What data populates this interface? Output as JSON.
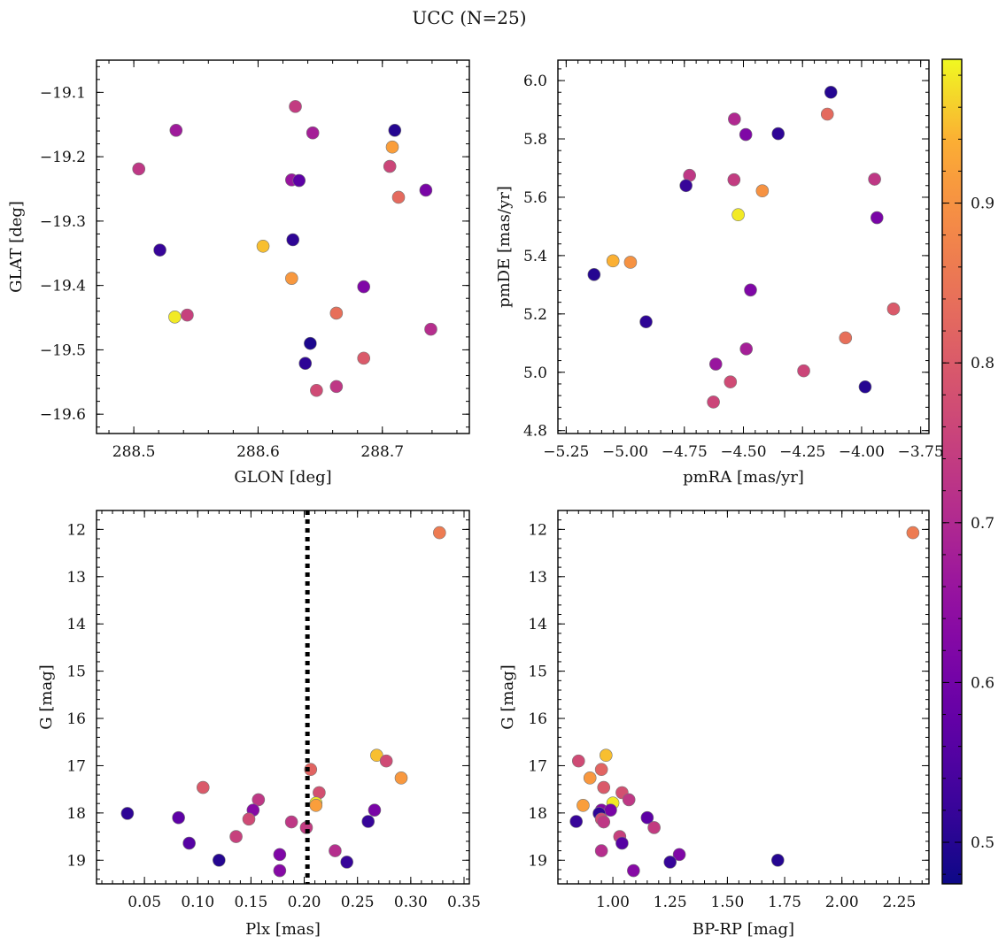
{
  "figure": {
    "title": "UCC (N=25)",
    "colorbar": {
      "range": [
        0.474,
        0.99
      ],
      "ticks": [
        0.5,
        0.6,
        0.7,
        0.8,
        0.9
      ],
      "tick_labels": [
        "0.5",
        "0.6",
        "0.7",
        "0.8",
        "0.9"
      ],
      "colormap": "plasma"
    }
  },
  "chart_data": [
    {
      "id": "p1",
      "type": "scatter",
      "xlabel": "GLON [deg]",
      "ylabel": "GLAT [deg]",
      "xlim": [
        288.47,
        288.77
      ],
      "ylim": [
        -19.63,
        -19.05
      ],
      "xticks": [
        288.5,
        288.6,
        288.7
      ],
      "xtick_labels": [
        "288.5",
        "288.6",
        "288.7"
      ],
      "yticks": [
        -19.1,
        -19.2,
        -19.3,
        -19.4,
        -19.5,
        -19.6
      ],
      "ytick_labels": [
        "−19.1",
        "−19.2",
        "−19.3",
        "−19.4",
        "−19.5",
        "−19.6"
      ],
      "vline": null,
      "points": [
        {
          "x": 288.63,
          "y": -19.122,
          "c": 0.74
        },
        {
          "x": 288.534,
          "y": -19.159,
          "c": 0.67
        },
        {
          "x": 288.644,
          "y": -19.163,
          "c": 0.68
        },
        {
          "x": 288.71,
          "y": -19.159,
          "c": 0.5
        },
        {
          "x": 288.708,
          "y": -19.185,
          "c": 0.92
        },
        {
          "x": 288.504,
          "y": -19.219,
          "c": 0.73
        },
        {
          "x": 288.706,
          "y": -19.215,
          "c": 0.76
        },
        {
          "x": 288.627,
          "y": -19.236,
          "c": 0.66
        },
        {
          "x": 288.633,
          "y": -19.237,
          "c": 0.57
        },
        {
          "x": 288.713,
          "y": -19.263,
          "c": 0.83
        },
        {
          "x": 288.735,
          "y": -19.252,
          "c": 0.61
        },
        {
          "x": 288.521,
          "y": -19.345,
          "c": 0.52
        },
        {
          "x": 288.604,
          "y": -19.339,
          "c": 0.95
        },
        {
          "x": 288.628,
          "y": -19.329,
          "c": 0.51
        },
        {
          "x": 288.627,
          "y": -19.389,
          "c": 0.91
        },
        {
          "x": 288.685,
          "y": -19.402,
          "c": 0.62
        },
        {
          "x": 288.533,
          "y": -19.449,
          "c": 0.98
        },
        {
          "x": 288.543,
          "y": -19.446,
          "c": 0.75
        },
        {
          "x": 288.663,
          "y": -19.443,
          "c": 0.84
        },
        {
          "x": 288.739,
          "y": -19.468,
          "c": 0.71
        },
        {
          "x": 288.642,
          "y": -19.49,
          "c": 0.49
        },
        {
          "x": 288.685,
          "y": -19.513,
          "c": 0.8
        },
        {
          "x": 288.638,
          "y": -19.521,
          "c": 0.51
        },
        {
          "x": 288.647,
          "y": -19.563,
          "c": 0.77
        },
        {
          "x": 288.663,
          "y": -19.557,
          "c": 0.73
        }
      ]
    },
    {
      "id": "p2",
      "type": "scatter",
      "xlabel": "pmRA [mas/yr]",
      "ylabel": "pmDE [mas/yr]",
      "xlim": [
        -5.285,
        -3.715
      ],
      "ylim": [
        4.79,
        6.07
      ],
      "xticks": [
        -5.25,
        -5.0,
        -4.75,
        -4.5,
        -4.25,
        -4.0,
        -3.75
      ],
      "xtick_labels": [
        "−5.25",
        "−5.00",
        "−4.75",
        "−4.50",
        "−4.25",
        "−4.00",
        "−3.75"
      ],
      "yticks": [
        4.8,
        5.0,
        5.2,
        5.4,
        5.6,
        5.8,
        6.0
      ],
      "ytick_labels": [
        "4.8",
        "5.0",
        "5.2",
        "5.4",
        "5.6",
        "5.8",
        "6.0"
      ],
      "vline": null,
      "points": [
        {
          "x": -4.13,
          "y": 5.96,
          "c": 0.5
        },
        {
          "x": -4.145,
          "y": 5.885,
          "c": 0.83
        },
        {
          "x": -4.538,
          "y": 5.868,
          "c": 0.7
        },
        {
          "x": -4.49,
          "y": 5.815,
          "c": 0.62
        },
        {
          "x": -4.353,
          "y": 5.818,
          "c": 0.51
        },
        {
          "x": -4.728,
          "y": 5.675,
          "c": 0.73
        },
        {
          "x": -4.743,
          "y": 5.64,
          "c": 0.52
        },
        {
          "x": -4.54,
          "y": 5.66,
          "c": 0.74
        },
        {
          "x": -3.945,
          "y": 5.662,
          "c": 0.73
        },
        {
          "x": -4.42,
          "y": 5.622,
          "c": 0.9
        },
        {
          "x": -4.522,
          "y": 5.54,
          "c": 0.98
        },
        {
          "x": -3.935,
          "y": 5.53,
          "c": 0.61
        },
        {
          "x": -5.052,
          "y": 5.382,
          "c": 0.94
        },
        {
          "x": -4.978,
          "y": 5.377,
          "c": 0.9
        },
        {
          "x": -5.132,
          "y": 5.335,
          "c": 0.5
        },
        {
          "x": -4.47,
          "y": 5.282,
          "c": 0.62
        },
        {
          "x": -3.865,
          "y": 5.217,
          "c": 0.8
        },
        {
          "x": -4.912,
          "y": 5.173,
          "c": 0.51
        },
        {
          "x": -4.068,
          "y": 5.118,
          "c": 0.84
        },
        {
          "x": -4.488,
          "y": 5.08,
          "c": 0.68
        },
        {
          "x": -4.617,
          "y": 5.028,
          "c": 0.66
        },
        {
          "x": -4.245,
          "y": 5.005,
          "c": 0.76
        },
        {
          "x": -4.555,
          "y": 4.967,
          "c": 0.77
        },
        {
          "x": -3.985,
          "y": 4.95,
          "c": 0.5
        },
        {
          "x": -4.627,
          "y": 4.898,
          "c": 0.76
        }
      ]
    },
    {
      "id": "p3",
      "type": "scatter",
      "xlabel": "Plx [mas]",
      "ylabel": "G [mag]",
      "xlim": [
        0.005,
        0.355
      ],
      "ylim": [
        19.5,
        11.6
      ],
      "xticks": [
        0.05,
        0.1,
        0.15,
        0.2,
        0.25,
        0.3,
        0.35
      ],
      "xtick_labels": [
        "0.05",
        "0.10",
        "0.15",
        "0.20",
        "0.25",
        "0.30",
        "0.35"
      ],
      "yticks": [
        12,
        13,
        14,
        15,
        16,
        17,
        18,
        19
      ],
      "ytick_labels": [
        "12",
        "13",
        "14",
        "15",
        "16",
        "17",
        "18",
        "19"
      ],
      "vline": 0.203,
      "points": [
        {
          "x": 0.327,
          "y": 12.07,
          "c": 0.86
        },
        {
          "x": 0.268,
          "y": 16.78,
          "c": 0.95
        },
        {
          "x": 0.277,
          "y": 16.9,
          "c": 0.77
        },
        {
          "x": 0.206,
          "y": 17.08,
          "c": 0.82
        },
        {
          "x": 0.291,
          "y": 17.26,
          "c": 0.91
        },
        {
          "x": 0.105,
          "y": 17.46,
          "c": 0.8
        },
        {
          "x": 0.214,
          "y": 17.57,
          "c": 0.78
        },
        {
          "x": 0.157,
          "y": 17.72,
          "c": 0.73
        },
        {
          "x": 0.211,
          "y": 17.79,
          "c": 0.98
        },
        {
          "x": 0.211,
          "y": 17.84,
          "c": 0.92
        },
        {
          "x": 0.152,
          "y": 17.94,
          "c": 0.63
        },
        {
          "x": 0.266,
          "y": 17.94,
          "c": 0.61
        },
        {
          "x": 0.034,
          "y": 18.01,
          "c": 0.51
        },
        {
          "x": 0.082,
          "y": 18.1,
          "c": 0.57
        },
        {
          "x": 0.148,
          "y": 18.13,
          "c": 0.77
        },
        {
          "x": 0.26,
          "y": 18.18,
          "c": 0.52
        },
        {
          "x": 0.188,
          "y": 18.19,
          "c": 0.73
        },
        {
          "x": 0.202,
          "y": 18.31,
          "c": 0.74
        },
        {
          "x": 0.136,
          "y": 18.5,
          "c": 0.75
        },
        {
          "x": 0.092,
          "y": 18.64,
          "c": 0.56
        },
        {
          "x": 0.229,
          "y": 18.8,
          "c": 0.71
        },
        {
          "x": 0.177,
          "y": 18.88,
          "c": 0.62
        },
        {
          "x": 0.12,
          "y": 19.0,
          "c": 0.5
        },
        {
          "x": 0.24,
          "y": 19.04,
          "c": 0.52
        },
        {
          "x": 0.177,
          "y": 19.22,
          "c": 0.63
        }
      ]
    },
    {
      "id": "p4",
      "type": "scatter",
      "xlabel": "BP-RP [mag]",
      "ylabel": "G [mag]",
      "xlim": [
        0.76,
        2.38
      ],
      "ylim": [
        19.5,
        11.6
      ],
      "xticks": [
        1.0,
        1.25,
        1.5,
        1.75,
        2.0,
        2.25
      ],
      "xtick_labels": [
        "1.00",
        "1.25",
        "1.50",
        "1.75",
        "2.00",
        "2.25"
      ],
      "yticks": [
        12,
        13,
        14,
        15,
        16,
        17,
        18,
        19
      ],
      "ytick_labels": [
        "12",
        "13",
        "14",
        "15",
        "16",
        "17",
        "18",
        "19"
      ],
      "vline": null,
      "points": [
        {
          "x": 2.31,
          "y": 12.07,
          "c": 0.86
        },
        {
          "x": 0.97,
          "y": 16.78,
          "c": 0.95
        },
        {
          "x": 0.85,
          "y": 16.9,
          "c": 0.77
        },
        {
          "x": 0.95,
          "y": 17.08,
          "c": 0.82
        },
        {
          "x": 0.9,
          "y": 17.26,
          "c": 0.91
        },
        {
          "x": 0.96,
          "y": 17.46,
          "c": 0.8
        },
        {
          "x": 1.04,
          "y": 17.57,
          "c": 0.78
        },
        {
          "x": 1.07,
          "y": 17.72,
          "c": 0.73
        },
        {
          "x": 1.0,
          "y": 17.79,
          "c": 0.98
        },
        {
          "x": 0.87,
          "y": 17.84,
          "c": 0.92
        },
        {
          "x": 0.95,
          "y": 17.94,
          "c": 0.63
        },
        {
          "x": 0.99,
          "y": 17.94,
          "c": 0.61
        },
        {
          "x": 0.94,
          "y": 18.01,
          "c": 0.51
        },
        {
          "x": 1.15,
          "y": 18.1,
          "c": 0.57
        },
        {
          "x": 0.95,
          "y": 18.13,
          "c": 0.77
        },
        {
          "x": 0.84,
          "y": 18.18,
          "c": 0.52
        },
        {
          "x": 0.96,
          "y": 18.19,
          "c": 0.73
        },
        {
          "x": 1.18,
          "y": 18.31,
          "c": 0.74
        },
        {
          "x": 1.03,
          "y": 18.5,
          "c": 0.75
        },
        {
          "x": 1.04,
          "y": 18.64,
          "c": 0.56
        },
        {
          "x": 0.95,
          "y": 18.8,
          "c": 0.71
        },
        {
          "x": 1.29,
          "y": 18.88,
          "c": 0.62
        },
        {
          "x": 1.72,
          "y": 19.0,
          "c": 0.5
        },
        {
          "x": 1.25,
          "y": 19.04,
          "c": 0.52
        },
        {
          "x": 1.09,
          "y": 19.22,
          "c": 0.63
        }
      ]
    }
  ]
}
